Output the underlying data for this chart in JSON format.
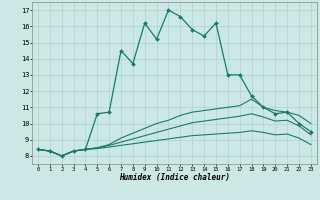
{
  "title": "",
  "xlabel": "Humidex (Indice chaleur)",
  "bg_color": "#cce8e4",
  "grid_color": "#aad4cc",
  "line_color": "#1a7a6a",
  "xlim": [
    -0.5,
    23.5
  ],
  "ylim": [
    7.5,
    17.5
  ],
  "yticks": [
    8,
    9,
    10,
    11,
    12,
    13,
    14,
    15,
    16,
    17
  ],
  "xticks": [
    0,
    1,
    2,
    3,
    4,
    5,
    6,
    7,
    8,
    9,
    10,
    11,
    12,
    13,
    14,
    15,
    16,
    17,
    18,
    19,
    20,
    21,
    22,
    23
  ],
  "line1_x": [
    0,
    1,
    2,
    3,
    4,
    5,
    6,
    7,
    8,
    9,
    10,
    11,
    12,
    13,
    14,
    15,
    16,
    17,
    18,
    19,
    20,
    21,
    22,
    23
  ],
  "line1_y": [
    8.4,
    8.3,
    8.0,
    8.3,
    8.4,
    10.6,
    10.7,
    14.5,
    13.7,
    16.2,
    15.2,
    17.0,
    16.6,
    15.8,
    15.4,
    16.2,
    13.0,
    13.0,
    11.7,
    11.0,
    10.6,
    10.7,
    10.0,
    9.5
  ],
  "line2_x": [
    0,
    1,
    2,
    3,
    4,
    5,
    6,
    7,
    8,
    9,
    10,
    11,
    12,
    13,
    14,
    15,
    16,
    17,
    18,
    19,
    20,
    21,
    22,
    23
  ],
  "line2_y": [
    8.4,
    8.3,
    8.0,
    8.3,
    8.4,
    8.5,
    8.7,
    9.1,
    9.4,
    9.7,
    10.0,
    10.2,
    10.5,
    10.7,
    10.8,
    10.9,
    11.0,
    11.1,
    11.5,
    11.0,
    10.8,
    10.7,
    10.5,
    10.0
  ],
  "line3_x": [
    0,
    1,
    2,
    3,
    4,
    5,
    6,
    7,
    8,
    9,
    10,
    11,
    12,
    13,
    14,
    15,
    16,
    17,
    18,
    19,
    20,
    21,
    22,
    23
  ],
  "line3_y": [
    8.4,
    8.3,
    8.0,
    8.3,
    8.4,
    8.5,
    8.65,
    8.85,
    9.05,
    9.25,
    9.45,
    9.65,
    9.85,
    10.05,
    10.15,
    10.25,
    10.35,
    10.45,
    10.6,
    10.4,
    10.15,
    10.2,
    9.85,
    9.3
  ],
  "line4_x": [
    0,
    1,
    2,
    3,
    4,
    5,
    6,
    7,
    8,
    9,
    10,
    11,
    12,
    13,
    14,
    15,
    16,
    17,
    18,
    19,
    20,
    21,
    22,
    23
  ],
  "line4_y": [
    8.4,
    8.3,
    8.0,
    8.3,
    8.4,
    8.45,
    8.55,
    8.65,
    8.75,
    8.85,
    8.95,
    9.05,
    9.15,
    9.25,
    9.3,
    9.35,
    9.4,
    9.45,
    9.55,
    9.45,
    9.3,
    9.35,
    9.1,
    8.7
  ]
}
